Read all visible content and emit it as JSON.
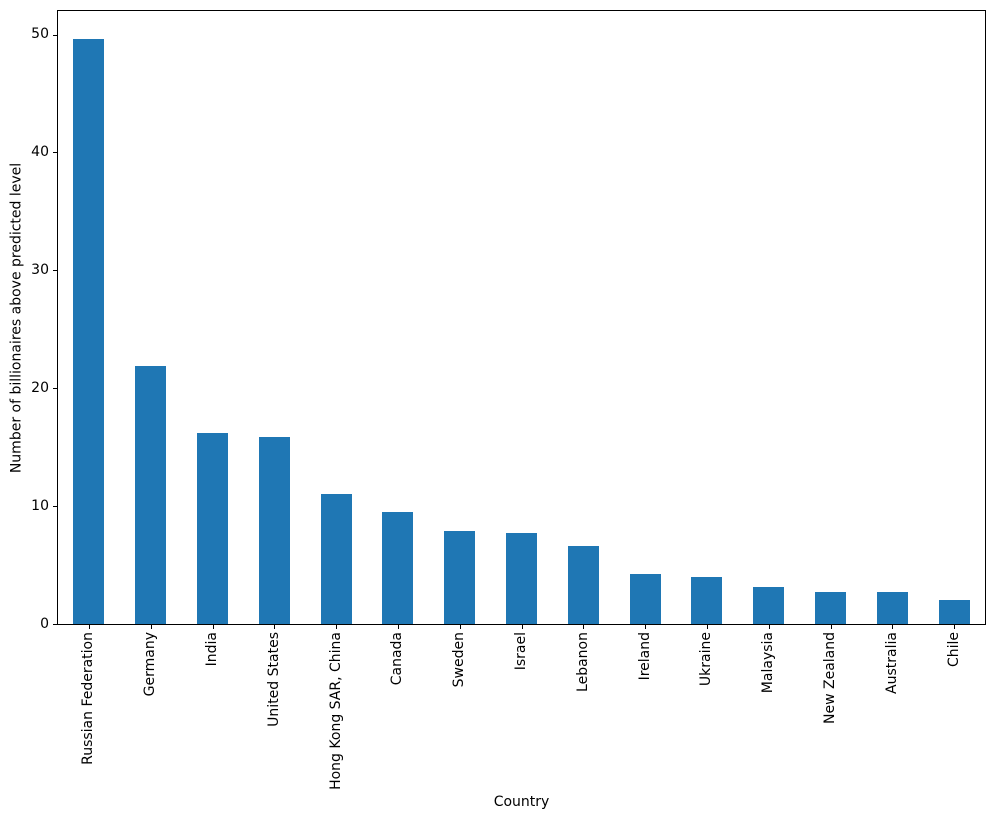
{
  "chart_data": {
    "type": "bar",
    "categories": [
      "Russian Federation",
      "Germany",
      "India",
      "United States",
      "Hong Kong SAR, China",
      "Canada",
      "Sweden",
      "Israel",
      "Lebanon",
      "Ireland",
      "Ukraine",
      "Malaysia",
      "New Zealand",
      "Australia",
      "Chile"
    ],
    "values": [
      49.6,
      21.9,
      16.2,
      15.9,
      11.0,
      9.5,
      7.9,
      7.75,
      6.6,
      4.25,
      4.0,
      3.1,
      2.75,
      2.7,
      2.0
    ],
    "xlabel": "Country",
    "ylabel": "Number of billionaires above predicted level",
    "yticks": [
      0,
      10,
      20,
      30,
      40,
      50
    ],
    "ylim": [
      0,
      52
    ],
    "bar_color": "#1f77b4",
    "background_color": "#ffffff",
    "text_color": "#000000",
    "grid": false,
    "legend": null,
    "bar_width_fraction": 0.5
  }
}
